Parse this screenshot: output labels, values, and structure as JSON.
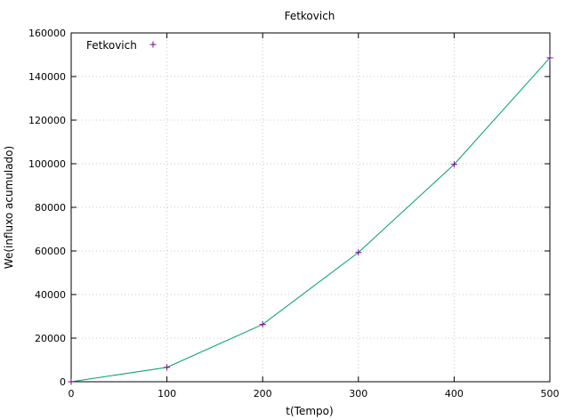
{
  "chart_data": {
    "type": "line",
    "title": "Fetkovich",
    "xlabel": "t(Tempo)",
    "ylabel": "We(influxo acumulado)",
    "xlim": [
      0,
      500
    ],
    "ylim": [
      0,
      160000
    ],
    "xticks": [
      0,
      100,
      200,
      300,
      400,
      500
    ],
    "yticks": [
      0,
      20000,
      40000,
      60000,
      80000,
      100000,
      120000,
      140000,
      160000
    ],
    "xtick_labels": [
      "0",
      "100",
      "200",
      "300",
      "400",
      "500"
    ],
    "ytick_labels": [
      "0",
      "20000",
      "40000",
      "60000",
      "80000",
      "100000",
      "120000",
      "140000",
      "160000"
    ],
    "grid": true,
    "legend_position": "top-left",
    "series": [
      {
        "name": "Fetkovich",
        "marker": "+",
        "marker_color": "#7b0099",
        "line_color": "#009e73",
        "x": [
          0,
          100,
          200,
          300,
          400,
          500
        ],
        "y": [
          0,
          6600,
          26300,
          59300,
          99700,
          148600
        ]
      }
    ]
  }
}
